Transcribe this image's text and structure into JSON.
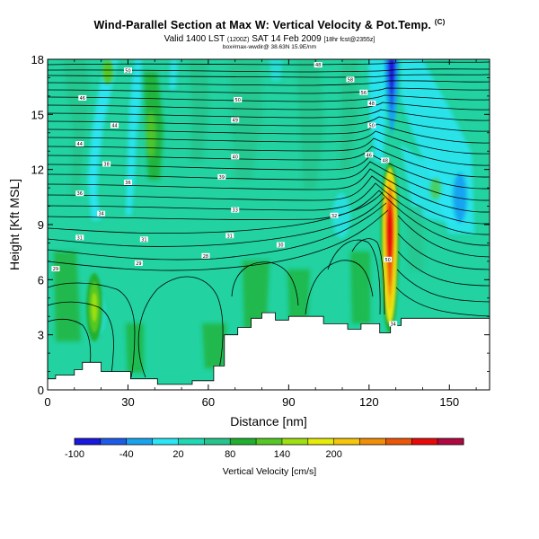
{
  "header": {
    "title": "Wind-Parallel Section at Max W: Vertical Velocity & Pot.Temp.",
    "title_mark": "(C)",
    "valid_main": "Valid 1400 LST",
    "valid_utc": "(1200Z)",
    "valid_date": "SAT 14 Feb 2009",
    "valid_run": "[18hr fcst@2355z]",
    "footnote": "box#max-wwdir@ 38.63N 15.9E/nm"
  },
  "colors": {
    "background": "#ffffff",
    "base_fill": "#22d2a0",
    "terrain": "#ffffff",
    "contour": "#000000"
  },
  "chart_data": {
    "type": "heatmap",
    "title": "Wind-Parallel Section at Max W: Vertical Velocity & Pot.Temp.",
    "xlabel": "Distance [nm]",
    "ylabel": "Height [Kft MSL]",
    "xlim": [
      0,
      165
    ],
    "ylim": [
      0,
      18
    ],
    "xticks": [
      0,
      30,
      60,
      90,
      120,
      150
    ],
    "yticks": [
      0,
      3,
      6,
      9,
      12,
      15,
      18
    ],
    "colorbar": {
      "label": "Vertical Velocity [cm/s]",
      "tick_labels": [
        "-100",
        "-40",
        "20",
        "80",
        "140",
        "200"
      ],
      "colors": [
        "#1a18dd",
        "#1c5ce8",
        "#18a4f0",
        "#2ae6f6",
        "#1fd9b5",
        "#26c58d",
        "#20b030",
        "#55c824",
        "#9ee010",
        "#e6ec08",
        "#f6c60a",
        "#f28e08",
        "#ec5608",
        "#e80a0a",
        "#b00840"
      ]
    },
    "terrain_nm_kft": [
      [
        0,
        0.6
      ],
      [
        3,
        0.6
      ],
      [
        3,
        0.8
      ],
      [
        10,
        0.8
      ],
      [
        10,
        1.1
      ],
      [
        13,
        1.1
      ],
      [
        13,
        1.5
      ],
      [
        20,
        1.5
      ],
      [
        20,
        1.0
      ],
      [
        31,
        1.0
      ],
      [
        31,
        0.6
      ],
      [
        41,
        0.6
      ],
      [
        41,
        0.3
      ],
      [
        54,
        0.3
      ],
      [
        54,
        0.5
      ],
      [
        62,
        0.5
      ],
      [
        62,
        1.3
      ],
      [
        66,
        1.3
      ],
      [
        66,
        3.0
      ],
      [
        71,
        3.0
      ],
      [
        71,
        3.4
      ],
      [
        76,
        3.4
      ],
      [
        76,
        3.9
      ],
      [
        80,
        3.9
      ],
      [
        80,
        4.2
      ],
      [
        85,
        4.2
      ],
      [
        85,
        3.8
      ],
      [
        90,
        3.8
      ],
      [
        90,
        4.0
      ],
      [
        103,
        4.0
      ],
      [
        103,
        3.6
      ],
      [
        112,
        3.6
      ],
      [
        112,
        3.3
      ],
      [
        117,
        3.3
      ],
      [
        117,
        3.6
      ],
      [
        124,
        3.6
      ],
      [
        124,
        3.1
      ],
      [
        128,
        3.1
      ],
      [
        128,
        3.5
      ],
      [
        132,
        3.5
      ],
      [
        132,
        3.9
      ],
      [
        165,
        3.9
      ]
    ],
    "vertical_velocity_features": [
      {
        "name": "updraft-core",
        "x_nm": 127,
        "y_kft": 8.5,
        "w_cms": 220
      },
      {
        "name": "downdraft-core",
        "x_nm": 128,
        "y_kft": 17,
        "w_cms": -100
      },
      {
        "name": "weak-updraft",
        "x_nm": 17,
        "y_kft": 4.5,
        "w_cms": 110
      },
      {
        "name": "weak-downdraft",
        "x_nm": 153,
        "y_kft": 10.5,
        "w_cms": -60
      }
    ],
    "contour_labels": [
      {
        "text": "29",
        "x": 3,
        "y": 6.6
      },
      {
        "text": "29",
        "x": 34,
        "y": 6.9
      },
      {
        "text": "28",
        "x": 59,
        "y": 7.3
      },
      {
        "text": "31",
        "x": 12,
        "y": 8.3
      },
      {
        "text": "31",
        "x": 36,
        "y": 8.2
      },
      {
        "text": "31",
        "x": 68,
        "y": 8.4
      },
      {
        "text": "30",
        "x": 87,
        "y": 7.9
      },
      {
        "text": "32",
        "x": 107,
        "y": 9.5
      },
      {
        "text": "34",
        "x": 20,
        "y": 9.6
      },
      {
        "text": "33",
        "x": 70,
        "y": 9.8
      },
      {
        "text": "36",
        "x": 12,
        "y": 10.7
      },
      {
        "text": "36",
        "x": 30,
        "y": 11.3
      },
      {
        "text": "39",
        "x": 65,
        "y": 11.6
      },
      {
        "text": "38",
        "x": 22,
        "y": 12.3
      },
      {
        "text": "44",
        "x": 12,
        "y": 13.4
      },
      {
        "text": "40",
        "x": 70,
        "y": 12.7
      },
      {
        "text": "46",
        "x": 120,
        "y": 12.8
      },
      {
        "text": "48",
        "x": 126,
        "y": 12.5
      },
      {
        "text": "44",
        "x": 25,
        "y": 14.4
      },
      {
        "text": "49",
        "x": 70,
        "y": 14.7
      },
      {
        "text": "50",
        "x": 121,
        "y": 14.4
      },
      {
        "text": "46",
        "x": 13,
        "y": 15.9
      },
      {
        "text": "50",
        "x": 71,
        "y": 15.8
      },
      {
        "text": "48",
        "x": 121,
        "y": 15.6
      },
      {
        "text": "56",
        "x": 118,
        "y": 16.2
      },
      {
        "text": "50",
        "x": 30,
        "y": 17.4
      },
      {
        "text": "48",
        "x": 101,
        "y": 17.7
      },
      {
        "text": "58",
        "x": 113,
        "y": 16.9
      },
      {
        "text": "50",
        "x": 127,
        "y": 7.1
      },
      {
        "text": "34",
        "x": 129,
        "y": 3.6
      }
    ]
  }
}
